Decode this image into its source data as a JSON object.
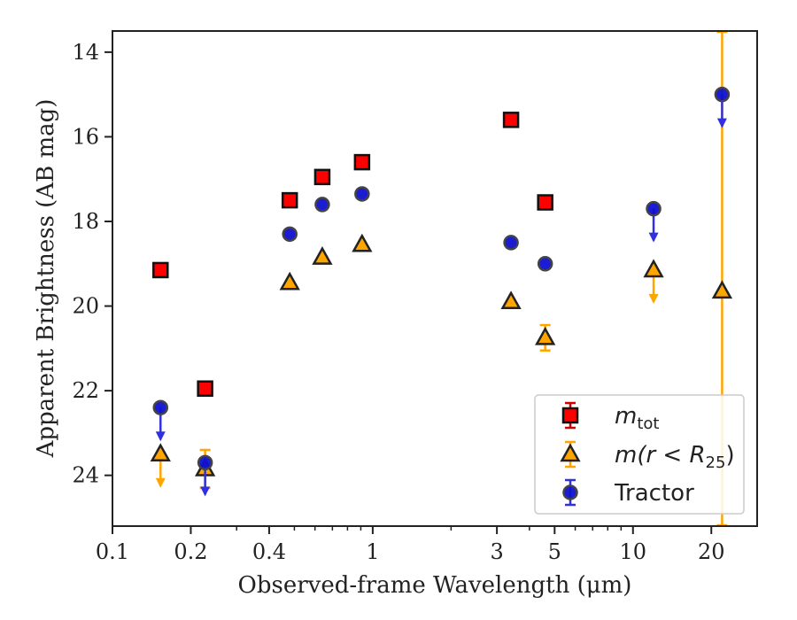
{
  "chart_data": {
    "type": "scatter",
    "xlabel": "Observed-frame Wavelength (μm)",
    "ylabel": "Apparent Brightness (AB mag)",
    "xscale": "log",
    "xlim": [
      0.1,
      30
    ],
    "ylim": [
      25.2,
      13.5
    ],
    "y_inverted": true,
    "xticks": [
      0.1,
      0.2,
      0.4,
      1,
      3,
      5,
      10,
      20
    ],
    "xtick_labels": [
      "0.1",
      "0.2",
      "0.4",
      "1",
      "3",
      "5",
      "10",
      "20"
    ],
    "yticks": [
      14,
      16,
      18,
      20,
      22,
      24
    ],
    "ytick_labels": [
      "14",
      "16",
      "18",
      "20",
      "22",
      "24"
    ],
    "grid": false,
    "legend_position": "lower-right",
    "series": [
      {
        "name": "m_tot",
        "label_base": "m",
        "label_sub": "tot",
        "marker": "square",
        "color": "#ff0000",
        "edge": "#111111",
        "points": [
          {
            "x": 0.153,
            "y": 19.15
          },
          {
            "x": 0.227,
            "y": 21.95
          },
          {
            "x": 0.48,
            "y": 17.5
          },
          {
            "x": 0.64,
            "y": 16.95
          },
          {
            "x": 0.91,
            "y": 16.6
          },
          {
            "x": 3.4,
            "y": 15.6
          },
          {
            "x": 4.6,
            "y": 17.55
          }
        ]
      },
      {
        "name": "m(r < R25)",
        "label_base": "m(r < R",
        "label_sub": "25",
        "label_tail": ")",
        "marker": "triangle",
        "color": "#ffa500",
        "edge": "#222222",
        "points": [
          {
            "x": 0.153,
            "y": 23.5,
            "upper_limit": true
          },
          {
            "x": 0.227,
            "y": 23.85,
            "yerr": 0.45
          },
          {
            "x": 0.48,
            "y": 19.45
          },
          {
            "x": 0.64,
            "y": 18.85
          },
          {
            "x": 0.91,
            "y": 18.55
          },
          {
            "x": 3.4,
            "y": 19.9
          },
          {
            "x": 4.6,
            "y": 20.75,
            "yerr": 0.3
          },
          {
            "x": 12.0,
            "y": 19.15,
            "upper_limit": true
          },
          {
            "x": 22.0,
            "y": 19.65,
            "yerr": 13.0
          }
        ]
      },
      {
        "name": "Tractor",
        "marker": "circle",
        "color": "#1010d0",
        "edge": "#444444",
        "points": [
          {
            "x": 0.153,
            "y": 22.4,
            "upper_limit": true
          },
          {
            "x": 0.227,
            "y": 23.7,
            "upper_limit": true
          },
          {
            "x": 0.48,
            "y": 18.3
          },
          {
            "x": 0.64,
            "y": 17.6
          },
          {
            "x": 0.91,
            "y": 17.35
          },
          {
            "x": 3.4,
            "y": 18.5
          },
          {
            "x": 4.6,
            "y": 19.0
          },
          {
            "x": 12.0,
            "y": 17.7,
            "upper_limit": true
          },
          {
            "x": 22.0,
            "y": 15.0,
            "upper_limit": true
          }
        ]
      }
    ]
  }
}
